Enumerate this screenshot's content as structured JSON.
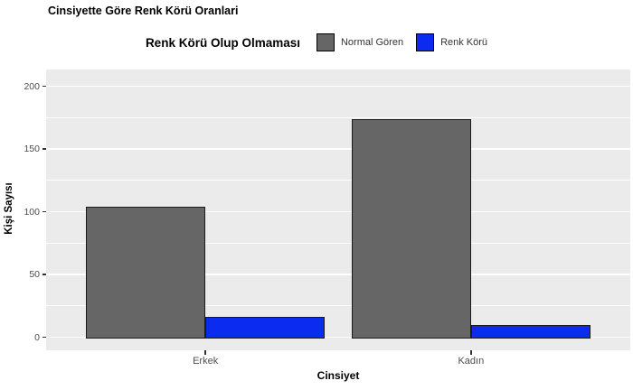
{
  "title": "Cinsiyette Göre Renk Körü Oranlari",
  "legend": {
    "title": "Renk Körü Olup Olmaması",
    "items": [
      {
        "label": "Normal Gören",
        "color": "#666666"
      },
      {
        "label": "Renk Körü",
        "color": "#0B2CF0"
      }
    ]
  },
  "axes": {
    "x_title": "Cinsiyet",
    "y_title": "Kişi Sayısı"
  },
  "chart_data": {
    "type": "bar",
    "title": "Cinsiyette Göre Renk Körü Oranlari",
    "xlabel": "Cinsiyet",
    "ylabel": "Kişi Sayısı",
    "categories": [
      "Erkek",
      "Kadın"
    ],
    "series": [
      {
        "name": "Normal Gören",
        "color": "#666666",
        "values": [
          104,
          174
        ]
      },
      {
        "name": "Renk Körü",
        "color": "#0B2CF0",
        "values": [
          16,
          10
        ]
      }
    ],
    "y_ticks": [
      0,
      50,
      100,
      150,
      200
    ],
    "y_minor_ticks": [
      25,
      75,
      125,
      175
    ],
    "ylim": [
      -10,
      213
    ],
    "grid": true,
    "legend_position": "top",
    "panel_background": "#EBEBEB",
    "gridline_color": "#FFFFFF",
    "bar_border_color": "#1A1A1A",
    "tick_label_color": "#4D4D4D"
  }
}
